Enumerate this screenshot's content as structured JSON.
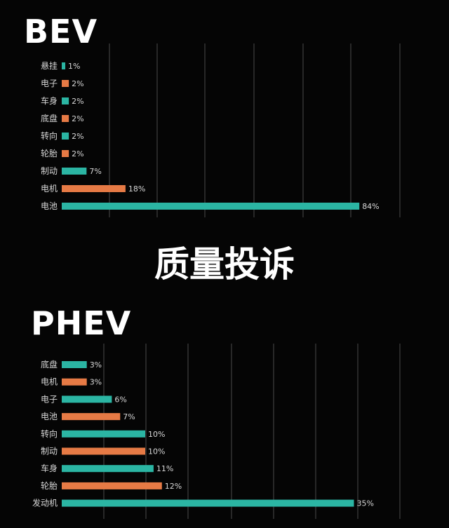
{
  "headings": {
    "bev": "BEV",
    "main": "质量投诉",
    "phev": "PHEV"
  },
  "colors": {
    "teal": "#2bb5a3",
    "orange": "#e67a45",
    "background": "#050505",
    "grid": "#4a4a4a"
  },
  "chart_data": [
    {
      "type": "bar",
      "orientation": "horizontal",
      "title": "BEV",
      "categories": [
        "悬挂",
        "电子",
        "车身",
        "底盘",
        "转向",
        "轮胎",
        "制动",
        "电机",
        "电池"
      ],
      "values": [
        1,
        2,
        2,
        2,
        2,
        2,
        7,
        18,
        84
      ],
      "value_labels": [
        "1%",
        "2%",
        "2%",
        "2%",
        "2%",
        "2%",
        "7%",
        "18%",
        "84%"
      ],
      "bar_colors": [
        "teal",
        "orange",
        "teal",
        "orange",
        "teal",
        "orange",
        "teal",
        "orange",
        "teal"
      ],
      "xlim": [
        0,
        100
      ],
      "grid": true,
      "legend": "none"
    },
    {
      "type": "bar",
      "orientation": "horizontal",
      "title": "PHEV",
      "categories": [
        "底盘",
        "电机",
        "电子",
        "电池",
        "转向",
        "制动",
        "车身",
        "轮胎",
        "发动机"
      ],
      "values": [
        3,
        3,
        6,
        7,
        10,
        10,
        11,
        12,
        35
      ],
      "value_labels": [
        "3%",
        "3%",
        "6%",
        "7%",
        "10%",
        "10%",
        "11%",
        "12%",
        "35%"
      ],
      "bar_colors": [
        "teal",
        "orange",
        "teal",
        "orange",
        "teal",
        "orange",
        "teal",
        "orange",
        "teal"
      ],
      "xlim": [
        0,
        42
      ],
      "grid": true,
      "legend": "none"
    }
  ]
}
